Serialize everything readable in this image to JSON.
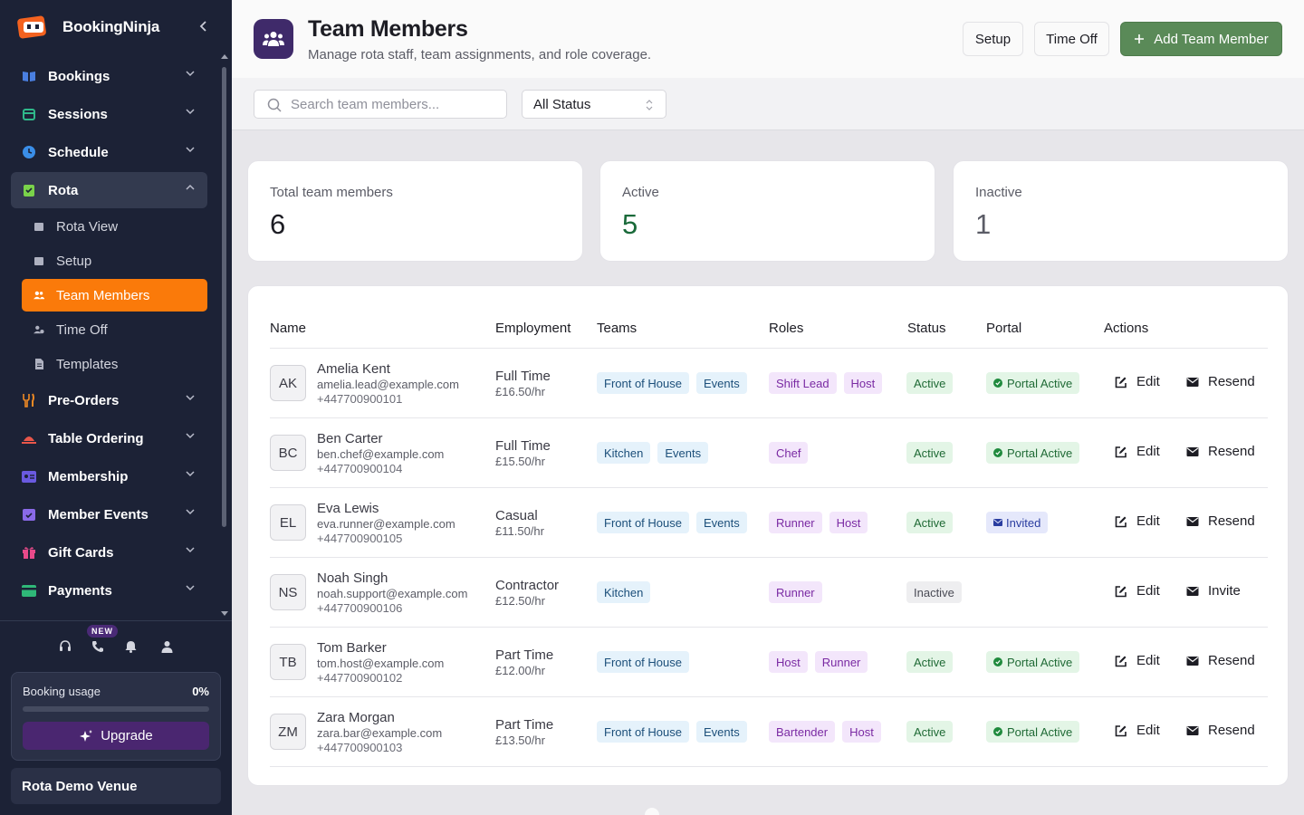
{
  "app": {
    "name": "BookingNinja"
  },
  "sidebar": {
    "items": [
      {
        "label": "Bookings",
        "color": "#4a7fe0"
      },
      {
        "label": "Sessions",
        "color": "#2fb88a"
      },
      {
        "label": "Schedule",
        "color": "#3a8ee8"
      },
      {
        "label": "Rota",
        "color": "#7ad34a"
      },
      {
        "label": "Pre-Orders",
        "color": "#f08a24"
      },
      {
        "label": "Table Ordering",
        "color": "#e8564a"
      },
      {
        "label": "Membership",
        "color": "#6a5ae0"
      },
      {
        "label": "Member Events",
        "color": "#8a6ae8"
      },
      {
        "label": "Gift Cards",
        "color": "#e84a8a"
      },
      {
        "label": "Payments",
        "color": "#2fb878"
      }
    ],
    "rota_sub": [
      "Rota View",
      "Setup",
      "Team Members",
      "Time Off",
      "Templates"
    ],
    "new_badge": "NEW",
    "usage": {
      "label": "Booking usage",
      "percent": "0%",
      "upgrade": "Upgrade"
    },
    "venue": "Rota Demo Venue"
  },
  "header": {
    "title": "Team Members",
    "subtitle": "Manage rota staff, team assignments, and role coverage.",
    "setup": "Setup",
    "time_off": "Time Off",
    "add": "Add Team Member"
  },
  "filters": {
    "search_placeholder": "Search team members...",
    "status": "All Status"
  },
  "stats": [
    {
      "label": "Total team members",
      "value": "6",
      "color": "#1d1d24"
    },
    {
      "label": "Active",
      "value": "5",
      "color": "#1a6a3a"
    },
    {
      "label": "Inactive",
      "value": "1",
      "color": "#5b5c66"
    }
  ],
  "table": {
    "columns": [
      "Name",
      "Employment",
      "Teams",
      "Roles",
      "Status",
      "Portal",
      "Actions"
    ],
    "edit_label": "Edit",
    "rows": [
      {
        "initials": "AK",
        "name": "Amelia Kent",
        "email": "amelia.lead@example.com",
        "phone": "+447700900101",
        "employment": "Full Time",
        "rate": "£16.50/hr",
        "teams": [
          "Front of House",
          "Events"
        ],
        "roles": [
          "Shift Lead",
          "Host"
        ],
        "status": "Active",
        "portal": "Portal Active",
        "action": "Resend"
      },
      {
        "initials": "BC",
        "name": "Ben Carter",
        "email": "ben.chef@example.com",
        "phone": "+447700900104",
        "employment": "Full Time",
        "rate": "£15.50/hr",
        "teams": [
          "Kitchen",
          "Events"
        ],
        "roles": [
          "Chef"
        ],
        "status": "Active",
        "portal": "Portal Active",
        "action": "Resend"
      },
      {
        "initials": "EL",
        "name": "Eva Lewis",
        "email": "eva.runner@example.com",
        "phone": "+447700900105",
        "employment": "Casual",
        "rate": "£11.50/hr",
        "teams": [
          "Front of House",
          "Events"
        ],
        "roles": [
          "Runner",
          "Host"
        ],
        "status": "Active",
        "portal": "Invited",
        "action": "Resend"
      },
      {
        "initials": "NS",
        "name": "Noah Singh",
        "email": "noah.support@example.com",
        "phone": "+447700900106",
        "employment": "Contractor",
        "rate": "£12.50/hr",
        "teams": [
          "Kitchen"
        ],
        "roles": [
          "Runner"
        ],
        "status": "Inactive",
        "portal": "",
        "action": "Invite"
      },
      {
        "initials": "TB",
        "name": "Tom Barker",
        "email": "tom.host@example.com",
        "phone": "+447700900102",
        "employment": "Part Time",
        "rate": "£12.00/hr",
        "teams": [
          "Front of House"
        ],
        "roles": [
          "Host",
          "Runner"
        ],
        "status": "Active",
        "portal": "Portal Active",
        "action": "Resend"
      },
      {
        "initials": "ZM",
        "name": "Zara Morgan",
        "email": "zara.bar@example.com",
        "phone": "+447700900103",
        "employment": "Part Time",
        "rate": "£13.50/hr",
        "teams": [
          "Front of House",
          "Events"
        ],
        "roles": [
          "Bartender",
          "Host"
        ],
        "status": "Active",
        "portal": "Portal Active",
        "action": "Resend"
      }
    ]
  }
}
